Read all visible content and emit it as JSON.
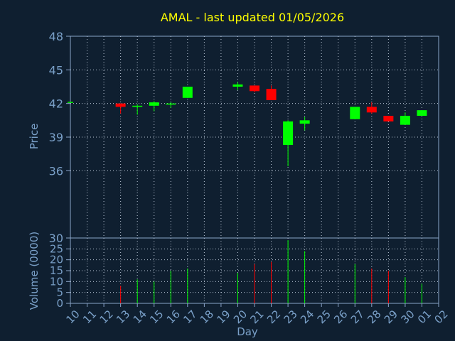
{
  "chart_data": {
    "type": "candlestick",
    "title": "AMAL - last updated 01/05/2026",
    "xlabel": "Day",
    "colors": {
      "background": "#0f1f30",
      "plot_bg": "#0f1f30",
      "axis": "#8aa4c8",
      "grid": "#b8c4d4",
      "title": "#ffff00",
      "label": "#7aa0c8",
      "up": "#00ff00",
      "down": "#ff0000"
    },
    "x_ticks": [
      "10",
      "11",
      "12",
      "13",
      "14",
      "15",
      "16",
      "17",
      "18",
      "19",
      "20",
      "21",
      "22",
      "23",
      "24",
      "25",
      "26",
      "27",
      "28",
      "29",
      "30",
      "01",
      "02"
    ],
    "price_panel": {
      "ylabel": "Price",
      "ylim": [
        30,
        48
      ],
      "yticks": [
        "30",
        "36",
        "39",
        "42",
        "45",
        "48"
      ],
      "grid": true
    },
    "volume_panel": {
      "ylabel": "Volume (0000)",
      "ylim": [
        0,
        30
      ],
      "yticks": [
        "0",
        "5",
        "10",
        "15",
        "20",
        "25"
      ],
      "grid": true
    },
    "candles": [
      {
        "day": "10",
        "open": 42.1,
        "high": 42.1,
        "low": 42.1,
        "close": 42.1,
        "volume": 0
      },
      {
        "day": "13",
        "open": 42.0,
        "high": 42.0,
        "low": 41.1,
        "close": 41.7,
        "volume": 8
      },
      {
        "day": "14",
        "open": 41.7,
        "high": 41.9,
        "low": 41.0,
        "close": 41.8,
        "volume": 11
      },
      {
        "day": "15",
        "open": 41.8,
        "high": 42.2,
        "low": 41.3,
        "close": 42.1,
        "volume": 10
      },
      {
        "day": "16",
        "open": 41.9,
        "high": 42.1,
        "low": 41.6,
        "close": 42.0,
        "volume": 15
      },
      {
        "day": "17",
        "open": 42.5,
        "high": 43.5,
        "low": 42.5,
        "close": 43.5,
        "volume": 16
      },
      {
        "day": "20",
        "open": 43.5,
        "high": 43.9,
        "low": 43.2,
        "close": 43.7,
        "volume": 14
      },
      {
        "day": "21",
        "open": 43.6,
        "high": 43.6,
        "low": 43.0,
        "close": 43.1,
        "volume": 18
      },
      {
        "day": "22",
        "open": 43.3,
        "high": 43.6,
        "low": 42.3,
        "close": 42.3,
        "volume": 19
      },
      {
        "day": "23",
        "open": 38.3,
        "high": 40.5,
        "low": 36.4,
        "close": 40.4,
        "volume": 29
      },
      {
        "day": "24",
        "open": 40.2,
        "high": 40.8,
        "low": 39.6,
        "close": 40.5,
        "volume": 24
      },
      {
        "day": "27",
        "open": 40.6,
        "high": 41.7,
        "low": 40.6,
        "close": 41.7,
        "volume": 18
      },
      {
        "day": "28",
        "open": 41.7,
        "high": 42.1,
        "low": 41.1,
        "close": 41.2,
        "volume": 16
      },
      {
        "day": "29",
        "open": 40.9,
        "high": 40.9,
        "low": 40.4,
        "close": 40.4,
        "volume": 15
      },
      {
        "day": "30",
        "open": 40.1,
        "high": 41.2,
        "low": 40.1,
        "close": 40.9,
        "volume": 12
      },
      {
        "day": "01",
        "open": 40.9,
        "high": 41.4,
        "low": 40.9,
        "close": 41.4,
        "volume": 9
      }
    ]
  }
}
